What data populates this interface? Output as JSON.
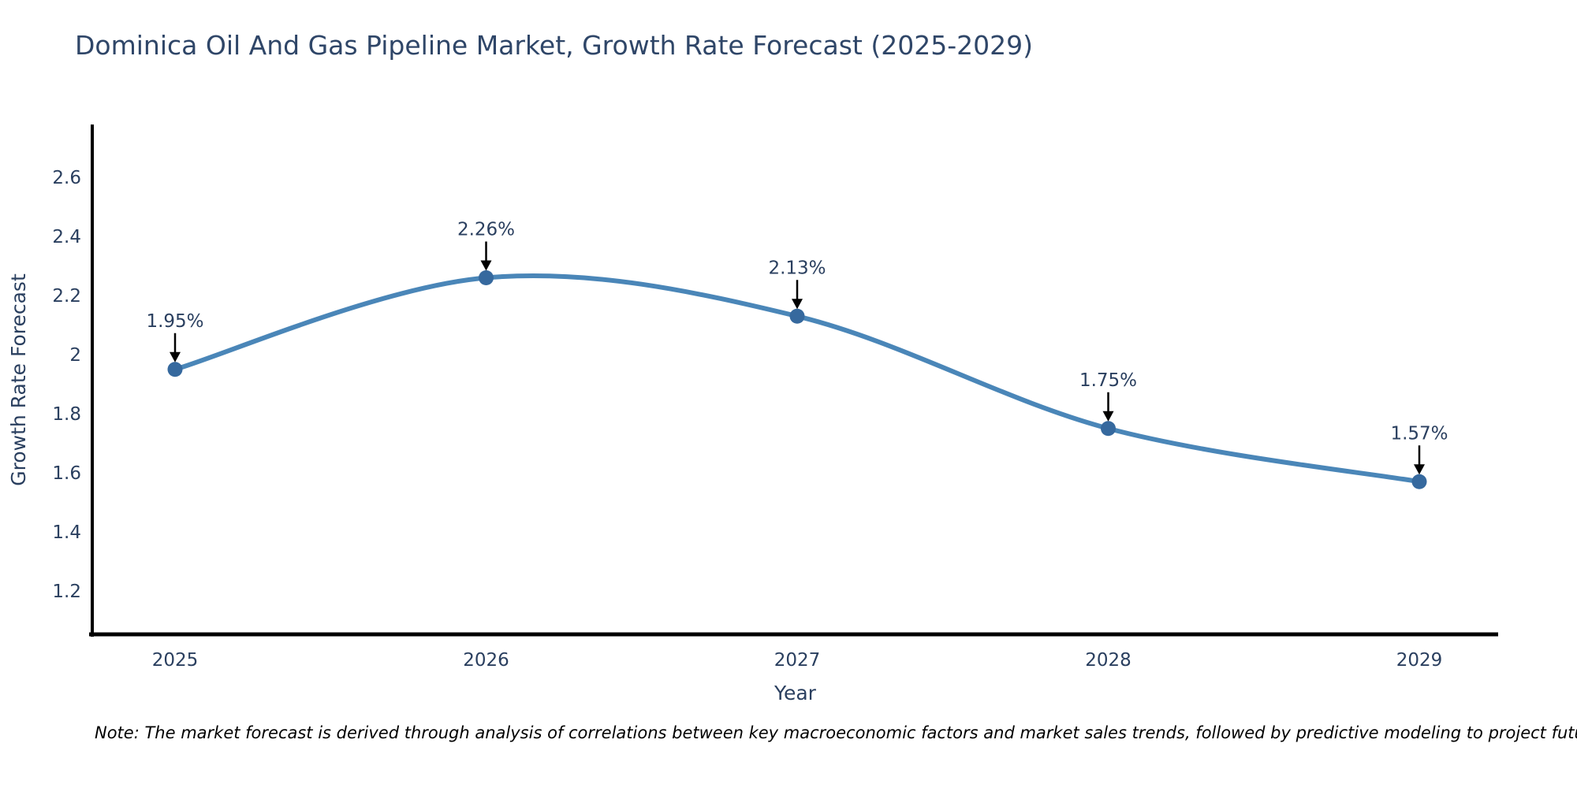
{
  "page": {
    "title": "Dominica Oil And Gas Pipeline Market, Growth Rate Forecast (2025-2029)",
    "note": "Note: The market forecast is derived through analysis of correlations between key macroeconomic factors and market sales trends, followed by predictive modeling to project future sales"
  },
  "chart_data": {
    "type": "line",
    "title": "Dominica Oil And Gas Pipeline Market, Growth Rate Forecast (2025-2029)",
    "categories": [
      "2025",
      "2026",
      "2027",
      "2028",
      "2029"
    ],
    "series": [
      {
        "name": "Growth Rate Forecast",
        "values": [
          1.95,
          2.26,
          2.13,
          1.75,
          1.57
        ],
        "point_labels": [
          "1.95%",
          "2.26%",
          "2.13%",
          "1.75%",
          "1.57%"
        ]
      }
    ],
    "xlabel": "Year",
    "ylabel": "Growth Rate Forecast",
    "ytick_labels": [
      "2.6",
      "2.4",
      "2.2",
      "2",
      "1.8",
      "1.6",
      "1.4",
      "1.2"
    ],
    "ytick_values": [
      2.6,
      2.4,
      2.2,
      2.0,
      1.8,
      1.6,
      1.4,
      1.2
    ],
    "ylim": [
      1.05,
      2.78
    ],
    "line_shape": "spline",
    "grid": false,
    "legend_position": "none",
    "annotations": "value labels with down arrows above each point",
    "colors": {
      "line": "#4a86b8",
      "marker": "#36699e",
      "axis": "#000000",
      "tick_text": "#2a3f5f",
      "title_text": "#2f4668",
      "arrow": "#000000",
      "note_text": "#000000"
    }
  }
}
